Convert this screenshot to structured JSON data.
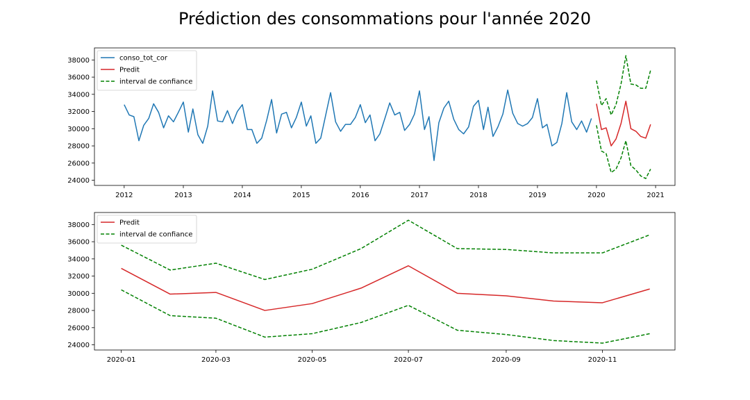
{
  "page_title": "Prédiction des consommations pour l'année 2020",
  "colors": {
    "history": "#1f77b4",
    "predicted": "#d62728",
    "confidence": "#008000"
  },
  "chart_data": [
    {
      "type": "line",
      "title": "",
      "xlabel": "",
      "ylabel": "",
      "x_type": "date",
      "xlim": [
        "2011-07-01",
        "2021-05-01"
      ],
      "ylim": [
        23400,
        39400
      ],
      "x_ticks": [
        "2012-01-01",
        "2013-01-01",
        "2014-01-01",
        "2015-01-01",
        "2016-01-01",
        "2017-01-01",
        "2018-01-01",
        "2019-01-01",
        "2020-01-01",
        "2021-01-01"
      ],
      "x_tick_labels": [
        "2012",
        "2013",
        "2014",
        "2015",
        "2016",
        "2017",
        "2018",
        "2019",
        "2020",
        "2021"
      ],
      "y_ticks": [
        24000,
        26000,
        28000,
        30000,
        32000,
        34000,
        36000,
        38000
      ],
      "y_tick_labels": [
        "24000",
        "26000",
        "28000",
        "30000",
        "32000",
        "34000",
        "36000",
        "38000"
      ],
      "grid": false,
      "legend_position": "top-left",
      "series": [
        {
          "name": "conso_tot_cor",
          "color": "#1f77b4",
          "style": "solid",
          "start": "2012-01",
          "values": [
            32800,
            31600,
            31400,
            28600,
            30400,
            31200,
            32900,
            31900,
            30100,
            31500,
            30800,
            31900,
            33100,
            29600,
            32300,
            29300,
            28300,
            30300,
            34400,
            30900,
            30800,
            32100,
            30600,
            32000,
            32800,
            29900,
            29900,
            28300,
            28900,
            31000,
            33400,
            29500,
            31700,
            31900,
            30100,
            31300,
            33100,
            30300,
            31500,
            28300,
            28900,
            31600,
            34200,
            30800,
            29700,
            30500,
            30500,
            31300,
            32800,
            30700,
            31600,
            28600,
            29400,
            31200,
            33000,
            31600,
            31900,
            29800,
            30500,
            31700,
            34400,
            29900,
            31400,
            26300,
            30700,
            32400,
            33200,
            31100,
            29900,
            29400,
            30200,
            32600,
            33300,
            29900,
            32500,
            29100,
            30200,
            31700,
            34500,
            31800,
            30600,
            30300,
            30600,
            31300,
            33500,
            30100,
            30500,
            28000,
            28400,
            30600,
            34200,
            30800,
            29900,
            30900,
            29600,
            31200
          ]
        },
        {
          "name": "Predit",
          "color": "#d62728",
          "style": "solid",
          "start": "2020-01",
          "values": [
            32900,
            29900,
            30100,
            28000,
            28800,
            30600,
            33200,
            30000,
            29700,
            29100,
            28900,
            30500
          ]
        },
        {
          "name": "interval de confiance",
          "color": "#008000",
          "style": "dashed",
          "start": "2020-01",
          "values": [
            35600,
            32700,
            33500,
            31600,
            32800,
            35200,
            38500,
            35200,
            35100,
            34700,
            34700,
            36800
          ]
        },
        {
          "name": "",
          "color": "#008000",
          "style": "dashed",
          "start": "2020-01",
          "values": [
            30400,
            27400,
            27100,
            24900,
            25300,
            26600,
            28600,
            25700,
            25200,
            24500,
            24200,
            25300
          ]
        }
      ]
    },
    {
      "type": "line",
      "title": "",
      "xlabel": "",
      "ylabel": "",
      "x_type": "date",
      "xlim": [
        "2019-12-15",
        "2020-12-17"
      ],
      "ylim": [
        23400,
        39400
      ],
      "x_ticks": [
        "2020-01-01",
        "2020-03-01",
        "2020-05-01",
        "2020-07-01",
        "2020-09-01",
        "2020-11-01"
      ],
      "x_tick_labels": [
        "2020-01",
        "2020-03",
        "2020-05",
        "2020-07",
        "2020-09",
        "2020-11"
      ],
      "y_ticks": [
        24000,
        26000,
        28000,
        30000,
        32000,
        34000,
        36000,
        38000
      ],
      "y_tick_labels": [
        "24000",
        "26000",
        "28000",
        "30000",
        "32000",
        "34000",
        "36000",
        "38000"
      ],
      "grid": false,
      "legend_position": "top-left",
      "series": [
        {
          "name": "Predit",
          "color": "#d62728",
          "style": "solid",
          "start": "2020-01",
          "values": [
            32900,
            29900,
            30100,
            28000,
            28800,
            30600,
            33200,
            30000,
            29700,
            29100,
            28900,
            30500
          ]
        },
        {
          "name": "interval de confiance",
          "color": "#008000",
          "style": "dashed",
          "start": "2020-01",
          "values": [
            35600,
            32700,
            33500,
            31600,
            32800,
            35200,
            38500,
            35200,
            35100,
            34700,
            34700,
            36800
          ]
        },
        {
          "name": "",
          "color": "#008000",
          "style": "dashed",
          "start": "2020-01",
          "values": [
            30400,
            27400,
            27100,
            24900,
            25300,
            26600,
            28600,
            25700,
            25200,
            24500,
            24200,
            25300
          ]
        }
      ]
    }
  ]
}
